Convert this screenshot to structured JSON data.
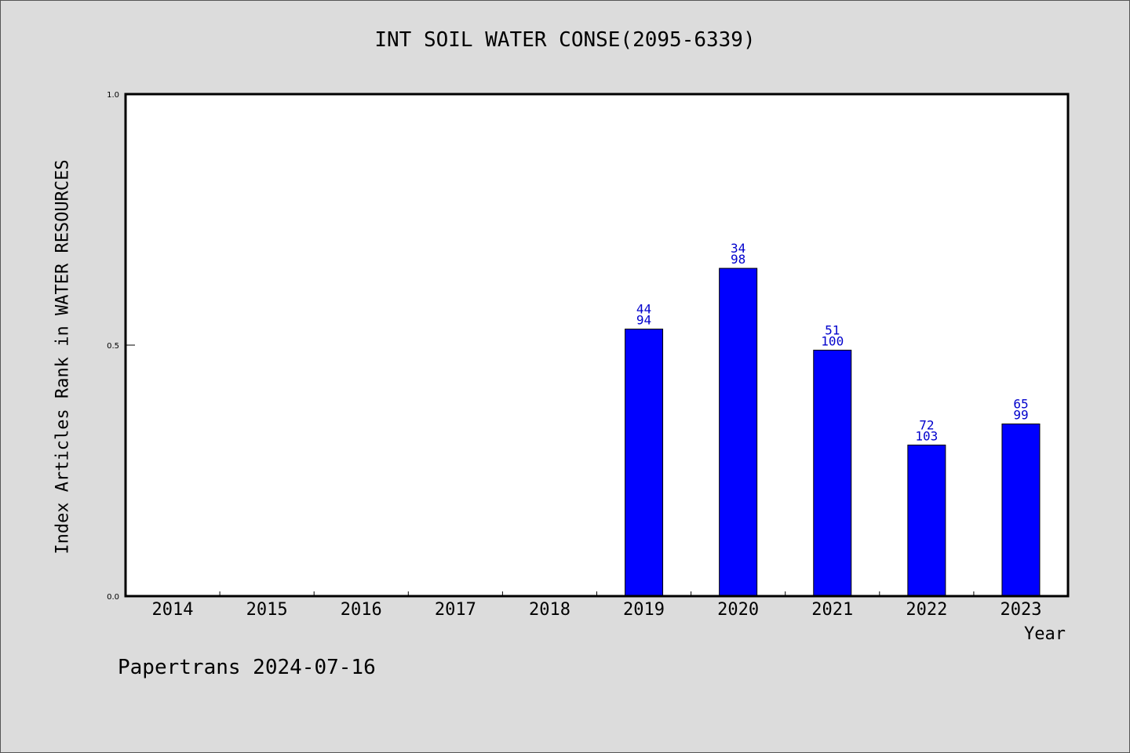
{
  "chart_data": {
    "type": "bar",
    "title": "INT SOIL WATER CONSE(2095-6339)",
    "xlabel": "Year",
    "ylabel": "Index Articles Rank in WATER RESOURCES",
    "categories": [
      "2014",
      "2015",
      "2016",
      "2017",
      "2018",
      "2019",
      "2020",
      "2021",
      "2022",
      "2023"
    ],
    "values": [
      null,
      null,
      null,
      null,
      null,
      0.532,
      0.653,
      0.49,
      0.301,
      0.343
    ],
    "bar_labels": [
      null,
      null,
      null,
      null,
      null,
      [
        "44",
        "94"
      ],
      [
        "34",
        "98"
      ],
      [
        "51",
        "100"
      ],
      [
        "72",
        "103"
      ],
      [
        "65",
        "99"
      ]
    ],
    "ylim": [
      0,
      1.0
    ],
    "yticks": [
      "0.0",
      "0.5",
      "1.0"
    ],
    "bar_color": "#0000ff",
    "label_color": "#0000cc",
    "grid": false
  },
  "footer": {
    "credit": "Papertrans 2024-07-16"
  }
}
